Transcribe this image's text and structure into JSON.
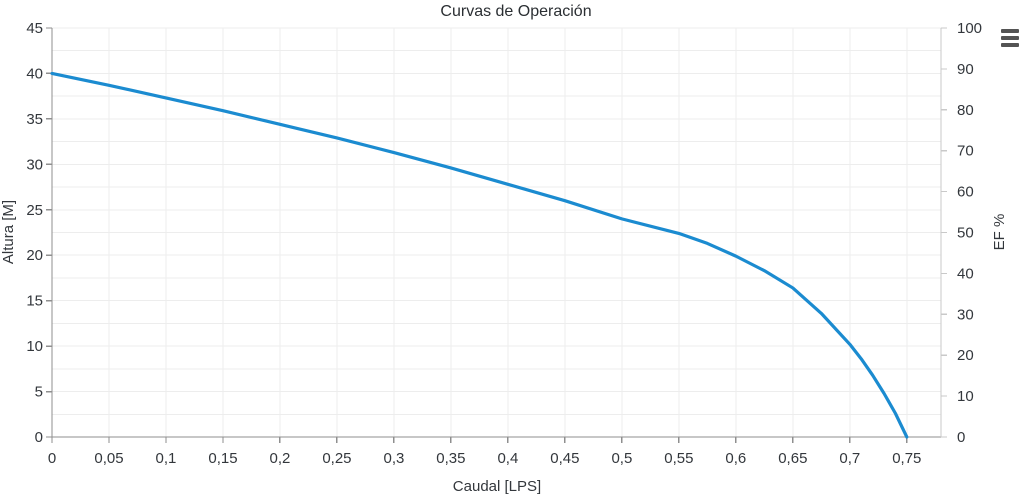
{
  "header": {
    "title": "Curvas de Operación"
  },
  "icons": {
    "export_menu": "hamburger-icon"
  },
  "colors": {
    "curve": "#1b8bd0",
    "text": "#33373c",
    "axis_line": "#8f8f8f",
    "right_axis_line": "#c9c9c9",
    "grid": "#ededed",
    "menu_icon": "#545454",
    "background": "#ffffff"
  },
  "chart_data": {
    "type": "line",
    "title": "Curvas de Operación",
    "xlabel": "Caudal [LPS]",
    "ylabel_left": "Altura [M]",
    "ylabel_right": "EF %",
    "xlim": [
      0,
      0.78
    ],
    "ylim_left": [
      0,
      45
    ],
    "ylim_right": [
      0,
      100
    ],
    "x_ticks": [
      0,
      0.05,
      0.1,
      0.15,
      0.2,
      0.25,
      0.3,
      0.35,
      0.4,
      0.45,
      0.5,
      0.55,
      0.6,
      0.65,
      0.7,
      0.75
    ],
    "x_tick_labels": [
      "0",
      "0,05",
      "0,1",
      "0,15",
      "0,2",
      "0,25",
      "0,3",
      "0,35",
      "0,4",
      "0,45",
      "0,5",
      "0,55",
      "0,6",
      "0,65",
      "0,7",
      "0,75"
    ],
    "y_ticks_left": [
      0,
      5,
      10,
      15,
      20,
      25,
      30,
      35,
      40,
      45
    ],
    "y_tick_labels_left": [
      "0",
      "5",
      "10",
      "15",
      "20",
      "25",
      "30",
      "35",
      "40",
      "45"
    ],
    "y_ticks_right": [
      0,
      10,
      20,
      30,
      40,
      50,
      60,
      70,
      80,
      90,
      100
    ],
    "y_tick_labels_right": [
      "0",
      "10",
      "20",
      "30",
      "40",
      "50",
      "60",
      "70",
      "80",
      "90",
      "100"
    ],
    "grid": {
      "show": true,
      "x_step": 0.05,
      "y_step_left": 2.5
    },
    "legend": {
      "show": false
    },
    "series": [
      {
        "name": "Altura",
        "axis": "left",
        "color": "#1b8bd0",
        "stroke_width": 3.2,
        "points": [
          [
            0,
            40.0
          ],
          [
            0.05,
            38.7
          ],
          [
            0.1,
            37.3
          ],
          [
            0.15,
            35.9
          ],
          [
            0.2,
            34.4
          ],
          [
            0.25,
            32.9
          ],
          [
            0.3,
            31.3
          ],
          [
            0.35,
            29.6
          ],
          [
            0.4,
            27.8
          ],
          [
            0.45,
            26.0
          ],
          [
            0.5,
            24.0
          ],
          [
            0.55,
            22.4
          ],
          [
            0.575,
            21.3
          ],
          [
            0.6,
            19.9
          ],
          [
            0.625,
            18.3
          ],
          [
            0.65,
            16.4
          ],
          [
            0.675,
            13.6
          ],
          [
            0.7,
            10.2
          ],
          [
            0.71,
            8.6
          ],
          [
            0.72,
            6.8
          ],
          [
            0.73,
            4.8
          ],
          [
            0.74,
            2.6
          ],
          [
            0.75,
            0.0
          ]
        ]
      }
    ]
  }
}
